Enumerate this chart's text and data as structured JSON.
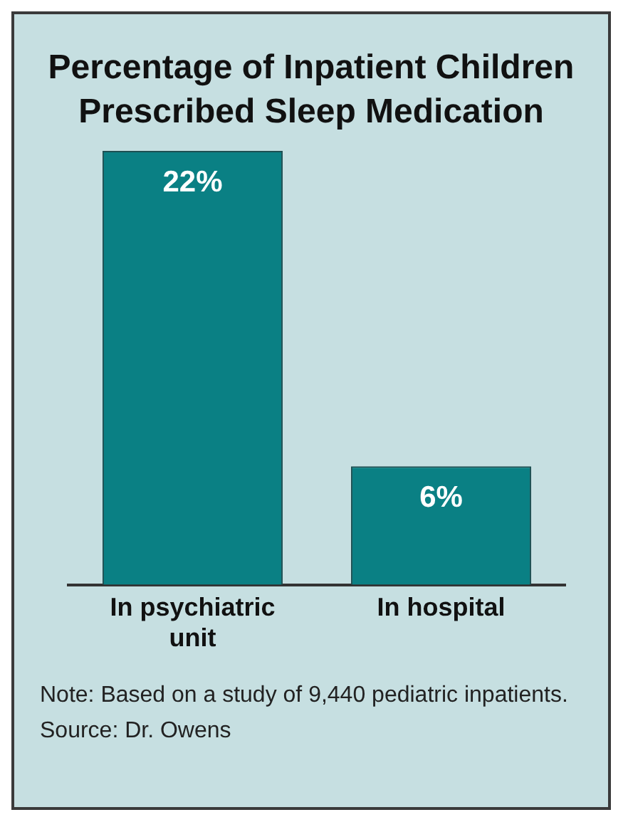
{
  "chart_data": {
    "type": "bar",
    "title": "Percentage of Inpatient Children Prescribed Sleep Medication",
    "categories": [
      "In psychiatric unit",
      "In hospital"
    ],
    "values": [
      22,
      6
    ],
    "color": "#0a8084",
    "data_labels": true,
    "tick_labels": "x",
    "legend": false,
    "grid": false,
    "value_labels": [
      "22%",
      "6%"
    ],
    "annotations": [
      "Note: Based on a study of 9,440 pediatric inpatients.",
      "Source: Dr. Owens"
    ]
  }
}
